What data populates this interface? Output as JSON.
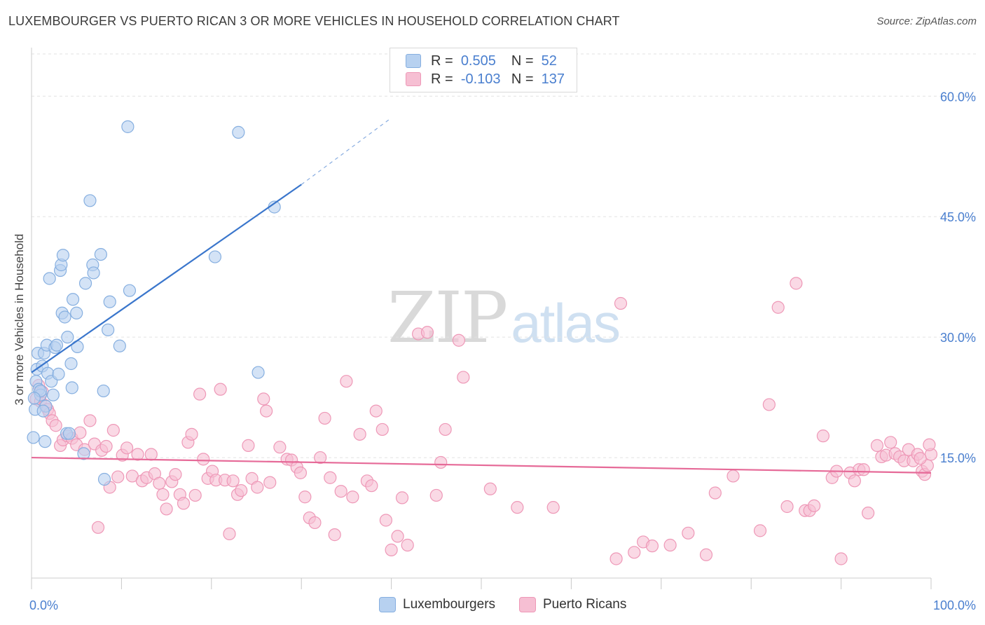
{
  "title": "LUXEMBOURGER VS PUERTO RICAN 3 OR MORE VEHICLES IN HOUSEHOLD CORRELATION CHART",
  "source": "Source: ZipAtlas.com",
  "watermark": {
    "zip": "ZIP",
    "atlas": "atlas"
  },
  "legend_top": {
    "r_label": "R =",
    "n_label": "N =",
    "rows": [
      {
        "r": "0.505",
        "n": "52"
      },
      {
        "r": "-0.103",
        "n": "137"
      }
    ]
  },
  "legend_bottom": [
    "Luxembourgers",
    "Puerto Ricans"
  ],
  "colors": {
    "blue_fill": "#b7d1f0",
    "blue_stroke": "#86afe0",
    "blue_line": "#3a76cc",
    "pink_fill": "#f6bfd3",
    "pink_stroke": "#ee98b7",
    "pink_line": "#e66a98",
    "tick_text": "#4a7fcf",
    "grid": "#e2e2e2"
  },
  "chart_data": {
    "type": "scatter",
    "title": "LUXEMBOURGER VS PUERTO RICAN 3 OR MORE VEHICLES IN HOUSEHOLD CORRELATION CHART",
    "xlabel": "",
    "ylabel": "3 or more Vehicles in Household",
    "xlim": [
      0,
      100
    ],
    "ylim": [
      0,
      65
    ],
    "x_tick_labels": [
      "0.0%",
      "100.0%"
    ],
    "y_ticks": [
      15,
      30,
      45,
      60
    ],
    "y_tick_labels": [
      "15.0%",
      "30.0%",
      "45.0%",
      "60.0%"
    ],
    "grid": "horizontal dashed",
    "legend_position": "top-center",
    "series": [
      {
        "name": "Luxembourgers",
        "r": 0.505,
        "n": 52,
        "trend": {
          "x": [
            0,
            30
          ],
          "y": [
            25.6,
            49.0
          ],
          "dashed_to": [
            40,
            57.3
          ]
        },
        "points": [
          [
            0.2,
            17.5
          ],
          [
            0.4,
            21.0
          ],
          [
            0.5,
            24.5
          ],
          [
            0.6,
            26.0
          ],
          [
            0.7,
            28.0
          ],
          [
            0.8,
            23.5
          ],
          [
            1.0,
            22.8
          ],
          [
            1.2,
            26.4
          ],
          [
            1.4,
            28.0
          ],
          [
            1.5,
            17.0
          ],
          [
            1.6,
            21.4
          ],
          [
            1.7,
            29.0
          ],
          [
            1.8,
            25.5
          ],
          [
            2.0,
            37.3
          ],
          [
            2.2,
            24.5
          ],
          [
            2.4,
            22.8
          ],
          [
            2.6,
            28.7
          ],
          [
            2.8,
            29.0
          ],
          [
            3.0,
            25.4
          ],
          [
            3.2,
            38.3
          ],
          [
            3.3,
            39.0
          ],
          [
            3.4,
            33.0
          ],
          [
            3.5,
            40.2
          ],
          [
            3.7,
            32.5
          ],
          [
            3.9,
            18.0
          ],
          [
            4.0,
            30.0
          ],
          [
            4.2,
            18.0
          ],
          [
            4.4,
            26.7
          ],
          [
            4.5,
            23.7
          ],
          [
            4.6,
            34.7
          ],
          [
            5.0,
            33.0
          ],
          [
            5.1,
            28.8
          ],
          [
            5.8,
            15.5
          ],
          [
            6.0,
            36.7
          ],
          [
            6.5,
            47.0
          ],
          [
            6.8,
            39.0
          ],
          [
            6.9,
            38.0
          ],
          [
            7.7,
            40.3
          ],
          [
            8.0,
            23.3
          ],
          [
            8.1,
            12.3
          ],
          [
            8.5,
            30.9
          ],
          [
            8.7,
            34.4
          ],
          [
            9.8,
            28.9
          ],
          [
            10.7,
            56.2
          ],
          [
            10.9,
            35.8
          ],
          [
            20.4,
            40.0
          ],
          [
            23.0,
            55.5
          ],
          [
            25.2,
            25.6
          ],
          [
            27.0,
            46.2
          ],
          [
            1.0,
            23.3
          ],
          [
            0.3,
            22.4
          ],
          [
            1.3,
            20.8
          ]
        ]
      },
      {
        "name": "Puerto Ricans",
        "r": -0.103,
        "n": 137,
        "trend": {
          "x": [
            0,
            100
          ],
          "y": [
            15.0,
            13.1
          ]
        },
        "points": [
          [
            0.5,
            22.3
          ],
          [
            0.8,
            24.0
          ],
          [
            1.0,
            22.0
          ],
          [
            1.2,
            23.2
          ],
          [
            1.5,
            21.5
          ],
          [
            1.8,
            21.0
          ],
          [
            2.0,
            20.5
          ],
          [
            2.3,
            19.6
          ],
          [
            2.7,
            19.0
          ],
          [
            3.2,
            16.5
          ],
          [
            3.5,
            17.2
          ],
          [
            4.0,
            17.7
          ],
          [
            4.5,
            17.4
          ],
          [
            5.0,
            16.6
          ],
          [
            5.4,
            18.1
          ],
          [
            5.9,
            16.0
          ],
          [
            6.5,
            19.6
          ],
          [
            7.0,
            16.7
          ],
          [
            7.4,
            6.3
          ],
          [
            7.8,
            15.9
          ],
          [
            8.3,
            16.4
          ],
          [
            8.7,
            11.3
          ],
          [
            9.1,
            18.4
          ],
          [
            9.6,
            12.6
          ],
          [
            10.1,
            15.3
          ],
          [
            10.6,
            16.2
          ],
          [
            11.2,
            12.7
          ],
          [
            11.8,
            15.4
          ],
          [
            12.3,
            12.1
          ],
          [
            12.8,
            12.5
          ],
          [
            13.3,
            15.4
          ],
          [
            13.7,
            13.0
          ],
          [
            14.2,
            11.8
          ],
          [
            14.6,
            10.4
          ],
          [
            15.0,
            8.6
          ],
          [
            15.6,
            12.0
          ],
          [
            16.0,
            12.9
          ],
          [
            16.5,
            10.4
          ],
          [
            16.9,
            9.3
          ],
          [
            17.4,
            16.9
          ],
          [
            17.8,
            17.9
          ],
          [
            18.2,
            10.3
          ],
          [
            18.7,
            22.9
          ],
          [
            19.1,
            14.8
          ],
          [
            19.6,
            12.4
          ],
          [
            20.1,
            13.3
          ],
          [
            20.5,
            12.2
          ],
          [
            21.0,
            23.5
          ],
          [
            21.5,
            12.2
          ],
          [
            22.0,
            5.5
          ],
          [
            22.4,
            12.1
          ],
          [
            22.9,
            10.4
          ],
          [
            23.3,
            10.9
          ],
          [
            24.1,
            16.5
          ],
          [
            24.5,
            12.4
          ],
          [
            25.1,
            11.3
          ],
          [
            25.8,
            22.3
          ],
          [
            26.1,
            20.8
          ],
          [
            26.5,
            11.9
          ],
          [
            27.6,
            16.3
          ],
          [
            28.4,
            14.8
          ],
          [
            28.9,
            14.7
          ],
          [
            29.5,
            13.8
          ],
          [
            29.9,
            13.1
          ],
          [
            30.4,
            10.1
          ],
          [
            30.9,
            7.5
          ],
          [
            31.5,
            6.9
          ],
          [
            32.1,
            15.0
          ],
          [
            32.6,
            19.9
          ],
          [
            33.2,
            12.5
          ],
          [
            33.7,
            5.4
          ],
          [
            34.4,
            10.8
          ],
          [
            35.0,
            24.5
          ],
          [
            35.7,
            10.1
          ],
          [
            36.5,
            17.9
          ],
          [
            37.3,
            12.1
          ],
          [
            37.8,
            11.5
          ],
          [
            38.3,
            20.8
          ],
          [
            39.0,
            18.5
          ],
          [
            39.4,
            7.2
          ],
          [
            40.0,
            3.5
          ],
          [
            40.7,
            5.2
          ],
          [
            41.2,
            10.0
          ],
          [
            41.8,
            4.1
          ],
          [
            43.0,
            30.4
          ],
          [
            44.0,
            30.6
          ],
          [
            45.0,
            10.3
          ],
          [
            45.5,
            14.4
          ],
          [
            46.0,
            18.5
          ],
          [
            47.5,
            29.6
          ],
          [
            48.0,
            25.0
          ],
          [
            51.0,
            11.1
          ],
          [
            54.0,
            8.8
          ],
          [
            58.0,
            8.8
          ],
          [
            65.0,
            2.4
          ],
          [
            65.5,
            34.2
          ],
          [
            67.0,
            3.2
          ],
          [
            68.0,
            4.5
          ],
          [
            69.0,
            4.0
          ],
          [
            71.0,
            4.1
          ],
          [
            73.0,
            5.6
          ],
          [
            75.0,
            2.9
          ],
          [
            76.0,
            10.6
          ],
          [
            78.0,
            12.7
          ],
          [
            81.0,
            5.9
          ],
          [
            82.0,
            21.6
          ],
          [
            83.0,
            33.7
          ],
          [
            84.0,
            8.9
          ],
          [
            85.0,
            36.7
          ],
          [
            86.0,
            8.4
          ],
          [
            86.5,
            8.4
          ],
          [
            87.0,
            9.0
          ],
          [
            88.0,
            17.7
          ],
          [
            89.0,
            12.5
          ],
          [
            89.5,
            13.3
          ],
          [
            90.0,
            2.4
          ],
          [
            91.0,
            13.1
          ],
          [
            91.5,
            12.1
          ],
          [
            92.0,
            13.5
          ],
          [
            92.5,
            13.5
          ],
          [
            93.0,
            8.1
          ],
          [
            94.0,
            16.5
          ],
          [
            94.5,
            15.1
          ],
          [
            95.0,
            15.3
          ],
          [
            95.5,
            16.9
          ],
          [
            96.0,
            15.5
          ],
          [
            96.5,
            15.1
          ],
          [
            97.0,
            14.6
          ],
          [
            97.5,
            16.0
          ],
          [
            98.0,
            14.6
          ],
          [
            98.5,
            15.4
          ],
          [
            99.0,
            13.3
          ],
          [
            99.3,
            12.9
          ],
          [
            99.6,
            14.0
          ],
          [
            100.0,
            15.4
          ],
          [
            99.8,
            16.6
          ],
          [
            98.8,
            14.9
          ]
        ]
      }
    ]
  }
}
